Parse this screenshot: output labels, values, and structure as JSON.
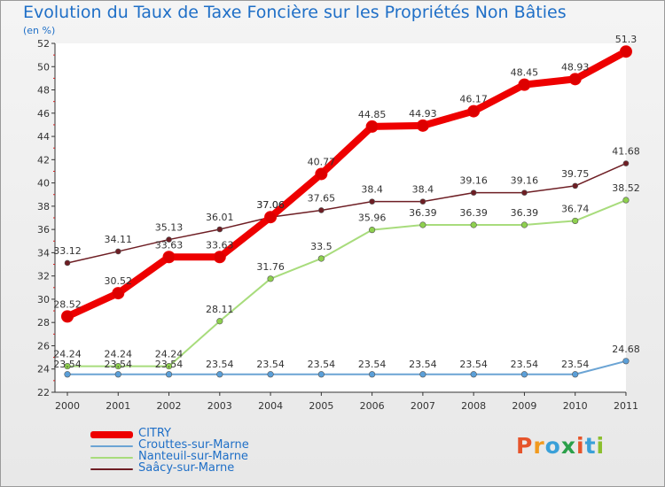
{
  "title": "Evolution du Taux de Taxe Foncière sur les Propriétés Non Bâties",
  "unit_label": "(en %)",
  "logo": {
    "text": "Proxiti",
    "letter_colors": [
      "#e6542b",
      "#f19a1e",
      "#3aa0d8",
      "#2ba04a",
      "#e6542b",
      "#3aa0d8",
      "#8bbf2e"
    ]
  },
  "chart_data": {
    "type": "line",
    "x": [
      "2000",
      "2001",
      "2002",
      "2003",
      "2004",
      "2005",
      "2006",
      "2007",
      "2008",
      "2009",
      "2010",
      "2011"
    ],
    "ylim": [
      22,
      52
    ],
    "yticks": [
      "22",
      "24",
      "26",
      "28",
      "30",
      "32",
      "34",
      "36",
      "38",
      "40",
      "42",
      "44",
      "46",
      "48",
      "50",
      "52"
    ],
    "grid": false,
    "legend_position": "bottom-left",
    "series": [
      {
        "name": "Saâcy-sur-Marne",
        "color": "#6e1e24",
        "values": [
          33.12,
          34.11,
          35.13,
          36.01,
          37.06,
          37.65,
          38.4,
          38.4,
          39.16,
          39.16,
          39.75,
          41.68
        ],
        "labels": [
          "33.12",
          "34.11",
          "35.13",
          "36.01",
          "37.06",
          "37.65",
          "38.4",
          "38.4",
          "39.16",
          "39.16",
          "39.75",
          "41.68"
        ]
      },
      {
        "name": "Nanteuil-sur-Marne",
        "color": "#a8dc7c",
        "values": [
          24.24,
          24.24,
          24.24,
          28.11,
          31.76,
          33.5,
          35.96,
          36.39,
          36.39,
          36.39,
          36.74,
          38.52
        ],
        "labels": [
          "24.24",
          "24.24",
          "24.24",
          "28.11",
          "31.76",
          "33.5",
          "35.96",
          "36.39",
          "36.39",
          "36.39",
          "36.74",
          "38.52"
        ]
      },
      {
        "name": "Crouttes-sur-Marne",
        "color": "#6ba4d4",
        "values": [
          23.54,
          23.54,
          23.54,
          23.54,
          23.54,
          23.54,
          23.54,
          23.54,
          23.54,
          23.54,
          23.54,
          24.68
        ],
        "labels": [
          "23.54",
          "23.54",
          "23.54",
          "23.54",
          "23.54",
          "23.54",
          "23.54",
          "23.54",
          "23.54",
          "23.54",
          "23.54",
          "24.68"
        ]
      },
      {
        "name": "CITRY",
        "color": "#ee0000",
        "values": [
          28.52,
          30.52,
          33.63,
          33.63,
          37.06,
          40.77,
          44.85,
          44.93,
          46.17,
          48.45,
          48.93,
          51.3
        ],
        "labels": [
          "28.52",
          "30.52",
          "33.63",
          "33.63",
          "37.06",
          "40.77",
          "44.85",
          "44.93",
          "46.17",
          "48.45",
          "48.93",
          "51.3"
        ]
      }
    ],
    "legend_order": [
      "CITRY",
      "Crouttes-sur-Marne",
      "Nanteuil-sur-Marne",
      "Saâcy-sur-Marne"
    ]
  }
}
